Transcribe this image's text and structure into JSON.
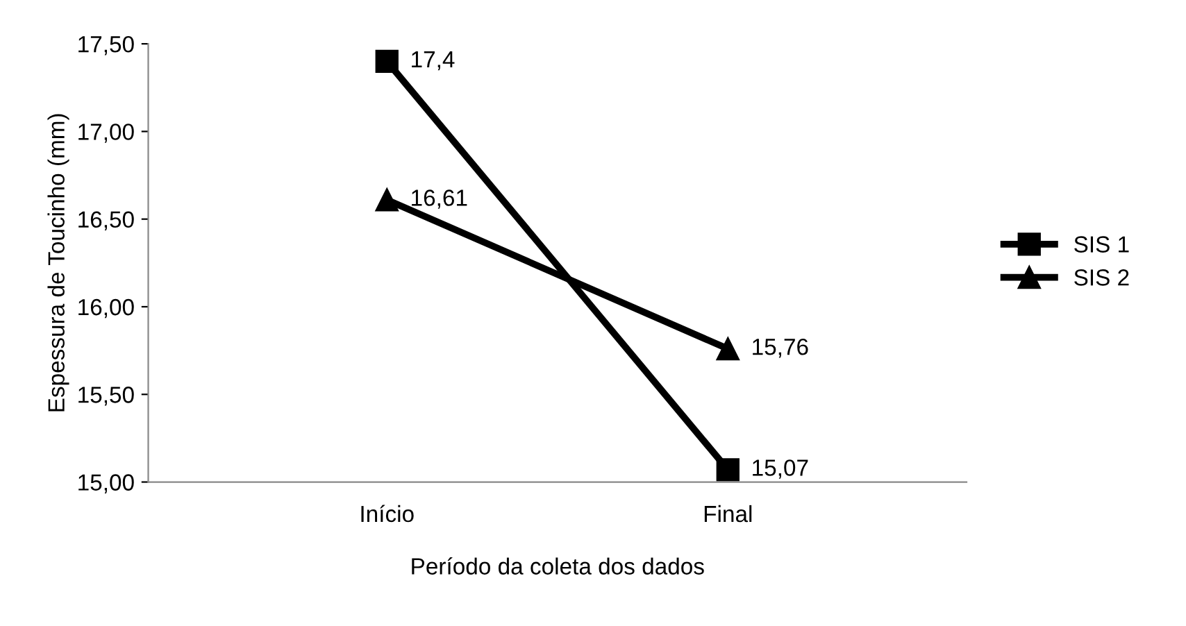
{
  "chart_data": {
    "type": "line",
    "xlabel": "Período da coleta dos dados",
    "ylabel": "Espessura de Toucinho (mm)",
    "categories": [
      "Início",
      "Final"
    ],
    "series": [
      {
        "name": "SIS 1",
        "color": "#000000",
        "marker": "square",
        "values": [
          17.4,
          15.07
        ],
        "value_labels": [
          "17,4",
          "15,07"
        ]
      },
      {
        "name": "SIS 2",
        "color": "#000000",
        "marker": "triangle",
        "values": [
          16.61,
          15.76
        ],
        "value_labels": [
          "16,61",
          "15,76"
        ]
      }
    ],
    "ylim": [
      15.0,
      17.5
    ],
    "yticks": [
      {
        "value": 15.0,
        "label": "15,00"
      },
      {
        "value": 15.5,
        "label": "15,50"
      },
      {
        "value": 16.0,
        "label": "16,00"
      },
      {
        "value": 16.5,
        "label": "16,50"
      },
      {
        "value": 17.0,
        "label": "17,00"
      },
      {
        "value": 17.5,
        "label": "17,50"
      }
    ],
    "grid": false,
    "legend": "right",
    "line_style": "solid"
  }
}
